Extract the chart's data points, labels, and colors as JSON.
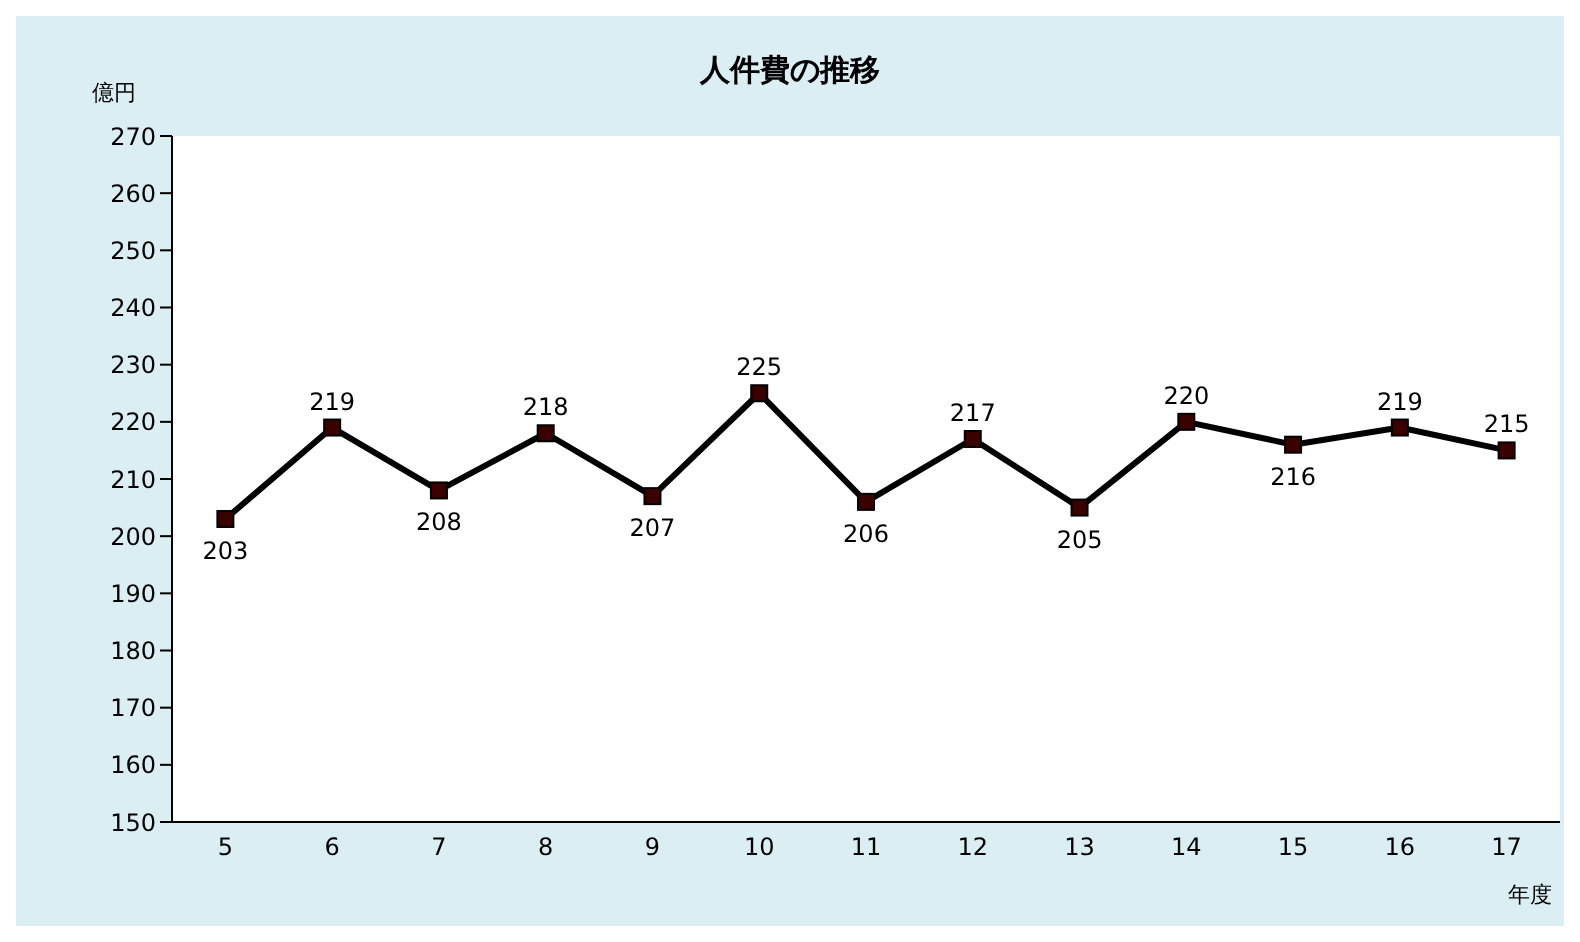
{
  "chart_data": {
    "type": "line",
    "title": "人件費の推移",
    "xlabel": "年度",
    "ylabel": "億円",
    "categories": [
      "5",
      "6",
      "7",
      "8",
      "9",
      "10",
      "11",
      "12",
      "13",
      "14",
      "15",
      "16",
      "17"
    ],
    "series": [
      {
        "color": "#000000",
        "values": [
          203,
          219,
          208,
          218,
          207,
          225,
          206,
          217,
          205,
          220,
          216,
          219,
          215
        ]
      }
    ],
    "ylim": [
      150,
      270
    ],
    "yticks": [
      150,
      160,
      170,
      180,
      190,
      200,
      210,
      220,
      230,
      240,
      250,
      260,
      270
    ],
    "grid": false,
    "legend": false,
    "marker": "square",
    "line_style": "solid",
    "data_labels": true
  }
}
